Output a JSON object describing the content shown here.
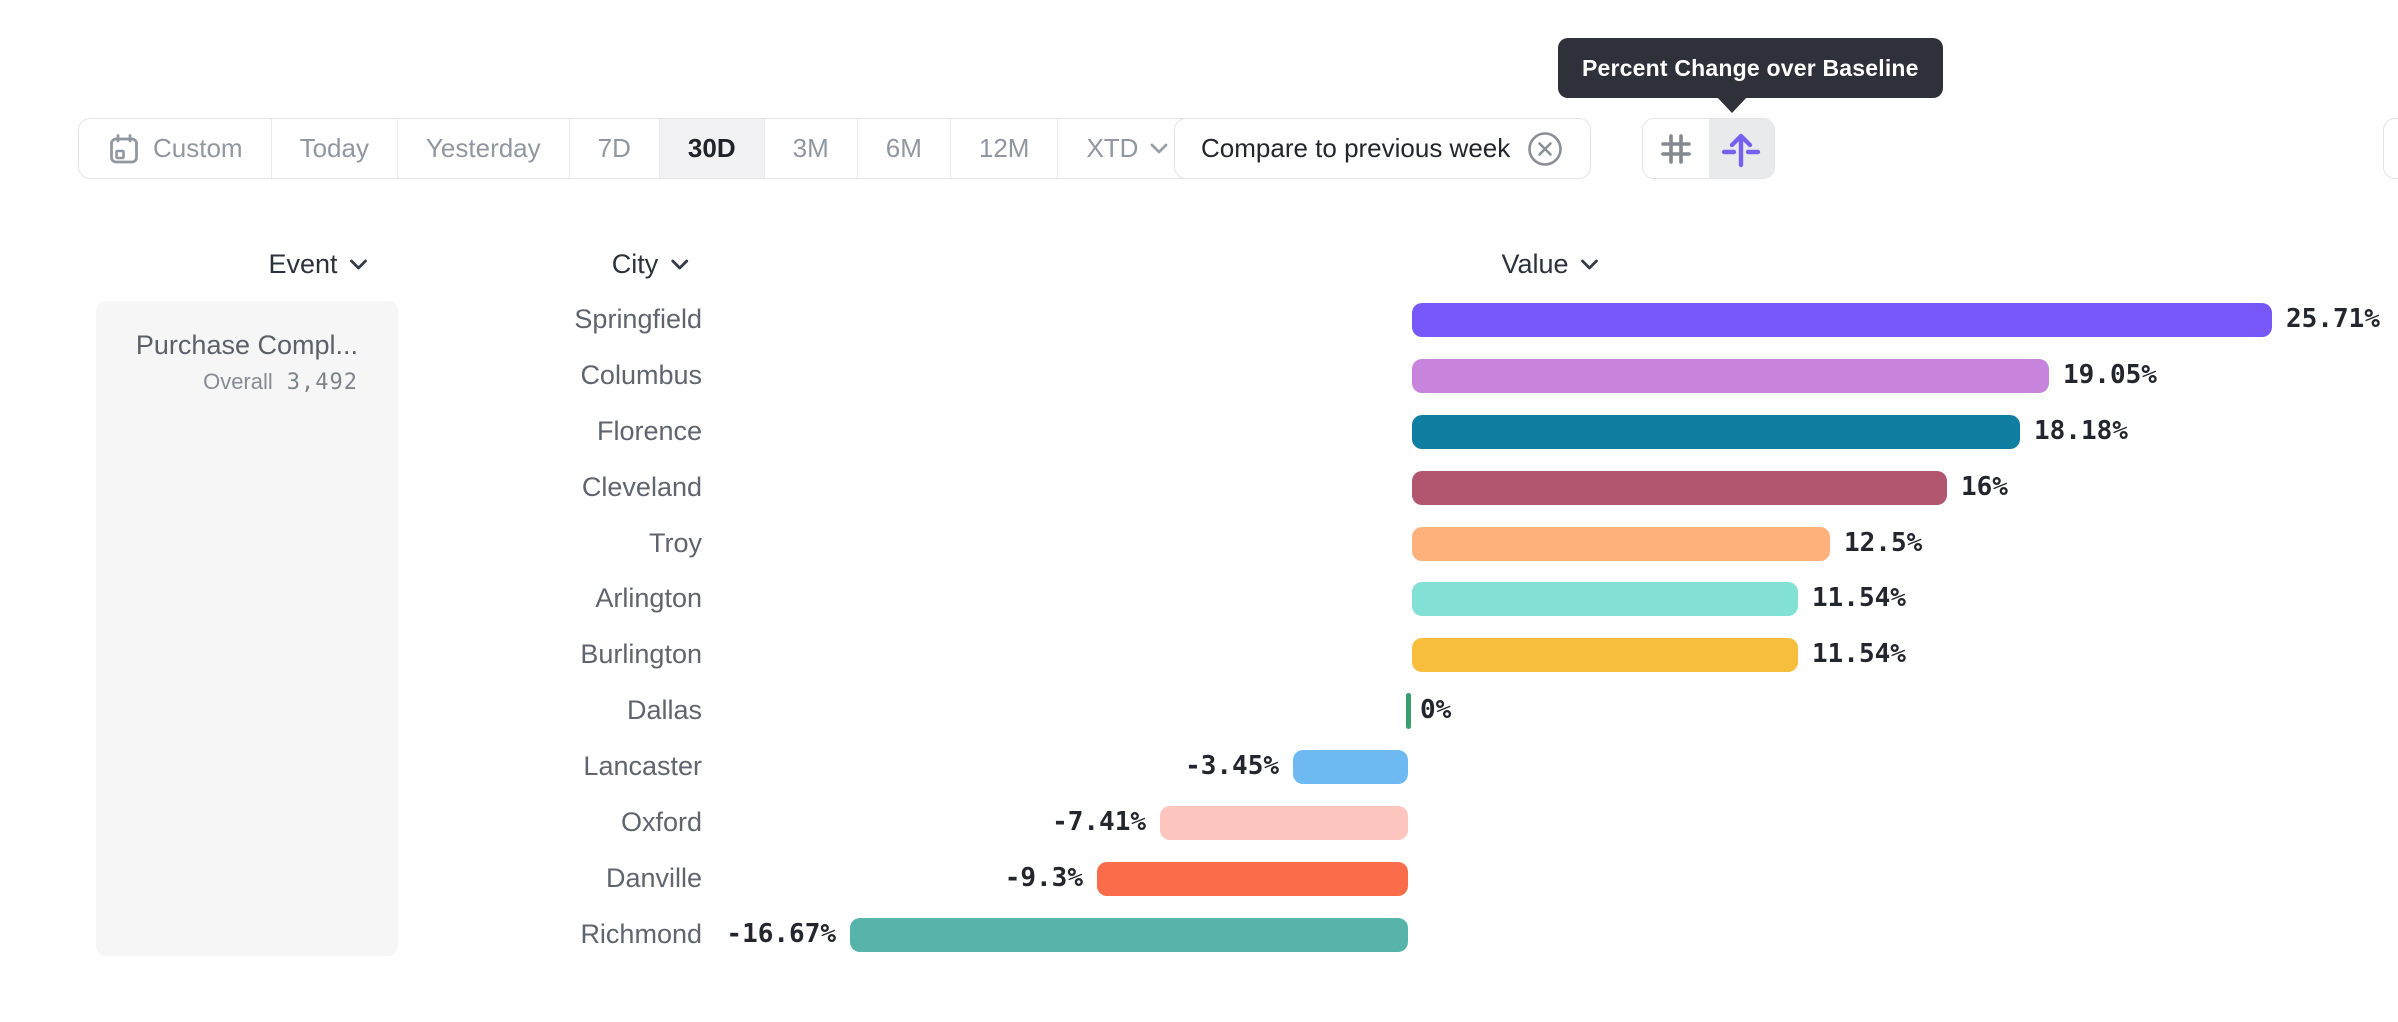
{
  "tooltip": {
    "text": "Percent Change over Baseline"
  },
  "toolbar": {
    "date_ranges": [
      {
        "label": "Custom",
        "icon": "calendar-icon",
        "selected": false
      },
      {
        "label": "Today",
        "selected": false
      },
      {
        "label": "Yesterday",
        "selected": false
      },
      {
        "label": "7D",
        "selected": false
      },
      {
        "label": "30D",
        "selected": true
      },
      {
        "label": "3M",
        "selected": false
      },
      {
        "label": "6M",
        "selected": false
      },
      {
        "label": "12M",
        "selected": false
      },
      {
        "label": "XTD",
        "selected": false,
        "has_chevron": true
      }
    ],
    "compare": {
      "label": "Compare to previous week",
      "icon": "close-circle-icon"
    },
    "view_toggles": [
      {
        "icon": "hash-icon",
        "selected": false
      },
      {
        "icon": "percent-baseline-icon",
        "selected": true,
        "accent_color": "#7561f0"
      }
    ]
  },
  "columns": [
    {
      "label": "Event",
      "has_chevron": true
    },
    {
      "label": "City",
      "has_chevron": true
    },
    {
      "label": "Value",
      "has_chevron": true
    }
  ],
  "event_panel": {
    "event_name": "Purchase Compl...",
    "overall_label": "Overall",
    "overall_value": "3,492"
  },
  "chart_data": {
    "type": "bar",
    "orientation": "horizontal",
    "title": "Percent Change over Baseline",
    "value_format": "percent",
    "baseline": 0,
    "xlim": [
      -16.67,
      25.71
    ],
    "grid": false,
    "categories": [
      "Springfield",
      "Columbus",
      "Florence",
      "Cleveland",
      "Troy",
      "Arlington",
      "Burlington",
      "Dallas",
      "Lancaster",
      "Oxford",
      "Danville",
      "Richmond"
    ],
    "values": [
      25.71,
      19.05,
      18.18,
      16,
      12.5,
      11.54,
      11.54,
      0,
      -3.45,
      -7.41,
      -9.3,
      -16.67
    ],
    "labels": [
      "25.71%",
      "19.05%",
      "18.18%",
      "16%",
      "12.5%",
      "11.54%",
      "11.54%",
      "0%",
      "-3.45%",
      "-7.41%",
      "-9.3%",
      "-16.67%"
    ],
    "colors": [
      "#7757f8",
      "#c884dc",
      "#0f7ea1",
      "#b25670",
      "#ffb17c",
      "#83e0d5",
      "#f7bd3d",
      "#359f70",
      "#6fb9f2",
      "#fcc5bd",
      "#fa6c4a",
      "#56b4aa"
    ]
  }
}
